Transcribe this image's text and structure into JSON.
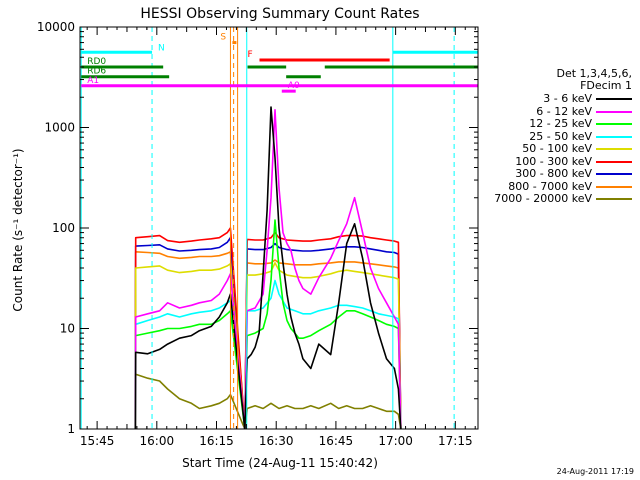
{
  "chart_data": {
    "type": "line",
    "title": "HESSI Observing Summary Count Rates",
    "xlabel": "Start Time (24-Aug-11 15:40:42)",
    "ylabel": "Count Rate (s⁻¹ detector⁻¹)",
    "x_unit": "minutes after 15:40:42",
    "xlim": [
      0,
      100
    ],
    "ylim": [
      1,
      10000
    ],
    "yscale": "log",
    "x_ticks": [
      {
        "label": "15:45",
        "value": 4.3
      },
      {
        "label": "16:00",
        "value": 19.3
      },
      {
        "label": "16:15",
        "value": 34.3
      },
      {
        "label": "16:30",
        "value": 49.3
      },
      {
        "label": "16:45",
        "value": 64.3
      },
      {
        "label": "17:00",
        "value": 79.3
      },
      {
        "label": "17:15",
        "value": 94.3
      }
    ],
    "y_ticks": [
      {
        "label": "1",
        "value": 1
      },
      {
        "label": "10",
        "value": 10
      },
      {
        "label": "100",
        "value": 100
      },
      {
        "label": "1000",
        "value": 1000
      },
      {
        "label": "10000",
        "value": 10000
      }
    ],
    "series": [
      {
        "name": "3 - 6 keV",
        "color": "#000000",
        "x": [
          13.9,
          14,
          17,
          20,
          22,
          25,
          28,
          30,
          33,
          35,
          37,
          37.8,
          41.4,
          42,
          43,
          44,
          45,
          46,
          47,
          48,
          49,
          50,
          51,
          52,
          53,
          54,
          55,
          56,
          58,
          60,
          63,
          65,
          67,
          69,
          71,
          73,
          75,
          77,
          79,
          80,
          80.6
        ],
        "y": [
          1,
          5.8,
          5.6,
          6.2,
          7,
          8,
          8.5,
          9.5,
          10.5,
          13,
          18,
          22,
          1,
          5,
          5.5,
          6.5,
          9,
          35,
          150,
          1600,
          500,
          100,
          45,
          22,
          13,
          9,
          7,
          5,
          4,
          7,
          5.5,
          18,
          70,
          110,
          50,
          18,
          9,
          5,
          4,
          2.5,
          1
        ]
      },
      {
        "name": "6 - 12 keV",
        "color": "#ff00ff",
        "x": [
          13.9,
          14,
          17,
          20,
          22,
          25,
          28,
          30,
          33,
          35,
          37,
          37.8,
          41.4,
          42,
          44,
          46,
          47,
          48,
          49,
          50,
          51,
          52,
          53,
          54,
          55,
          56,
          58,
          60,
          63,
          65,
          67,
          69,
          71,
          73,
          75,
          77,
          79,
          80,
          80.6
        ],
        "y": [
          1,
          13,
          14,
          15,
          18,
          16,
          17,
          18,
          19,
          22,
          30,
          35,
          1,
          15,
          16,
          22,
          60,
          200,
          1500,
          250,
          90,
          70,
          60,
          40,
          30,
          25,
          22,
          32,
          50,
          75,
          110,
          200,
          90,
          40,
          25,
          18,
          13,
          11,
          1
        ]
      },
      {
        "name": "12 - 25 keV",
        "color": "#00ff00",
        "x": [
          13.9,
          14,
          17,
          20,
          22,
          25,
          28,
          30,
          33,
          35,
          37,
          37.8,
          41.4,
          42,
          44,
          46,
          47,
          48,
          49,
          50,
          51,
          52,
          53,
          54,
          55,
          56,
          58,
          60,
          63,
          65,
          67,
          69,
          71,
          73,
          75,
          77,
          79,
          80,
          80.6
        ],
        "y": [
          1,
          8.5,
          9,
          9.5,
          10,
          10,
          10.5,
          11,
          11,
          12,
          14,
          15,
          1,
          8.5,
          9,
          10,
          14,
          30,
          120,
          40,
          18,
          12,
          10,
          9,
          8,
          8,
          8.5,
          9.5,
          11,
          13,
          15,
          15,
          14,
          13,
          12,
          11,
          10.5,
          10,
          1
        ]
      },
      {
        "name": "25 - 50 keV",
        "color": "#00ffff",
        "x": [
          13.9,
          14,
          17,
          20,
          22,
          25,
          28,
          30,
          33,
          35,
          37,
          37.8,
          41.4,
          42,
          44,
          46,
          48,
          49,
          50,
          52,
          54,
          56,
          58,
          60,
          63,
          65,
          67,
          69,
          71,
          73,
          75,
          77,
          79,
          80,
          80.6
        ],
        "y": [
          1,
          11,
          12,
          13,
          14,
          13,
          14,
          14.5,
          15,
          16,
          18,
          19,
          1,
          15,
          15,
          16,
          20,
          30,
          22,
          16,
          15,
          14,
          14,
          15,
          16,
          17,
          17,
          16.5,
          16,
          15,
          14,
          13.5,
          13,
          12.5,
          1
        ]
      },
      {
        "name": "50 - 100 keV",
        "color": "#dddd00",
        "x": [
          13.9,
          14,
          17,
          20,
          22,
          25,
          28,
          30,
          33,
          35,
          37,
          37.8,
          41.4,
          42,
          44,
          46,
          48,
          49,
          50,
          52,
          54,
          56,
          58,
          60,
          63,
          65,
          67,
          69,
          71,
          73,
          75,
          77,
          79,
          80,
          80.6
        ],
        "y": [
          1,
          40,
          41,
          42,
          38,
          36,
          37,
          38,
          38,
          39,
          42,
          44,
          1,
          34,
          34,
          35,
          37,
          45,
          38,
          34,
          33,
          32,
          32,
          33,
          35,
          37,
          38,
          37,
          36,
          35,
          34,
          33,
          32,
          31,
          1
        ]
      },
      {
        "name": "100 - 300 keV",
        "color": "#ff0000",
        "x": [
          13.9,
          14,
          17,
          20,
          22,
          25,
          28,
          30,
          33,
          35,
          37,
          37.8,
          41.4,
          42,
          44,
          46,
          48,
          49,
          50,
          52,
          54,
          56,
          58,
          60,
          63,
          65,
          67,
          69,
          71,
          73,
          75,
          77,
          79,
          80,
          80.6
        ],
        "y": [
          1,
          80,
          82,
          84,
          75,
          72,
          74,
          76,
          78,
          80,
          90,
          100,
          1,
          77,
          76,
          76,
          80,
          90,
          80,
          76,
          75,
          74,
          74,
          76,
          78,
          82,
          84,
          84,
          83,
          80,
          78,
          76,
          74,
          72,
          1
        ]
      },
      {
        "name": "300 - 800 keV",
        "color": "#0000cc",
        "x": [
          13.9,
          14,
          17,
          20,
          22,
          25,
          28,
          30,
          33,
          35,
          37,
          37.8,
          41.4,
          42,
          44,
          46,
          48,
          49,
          50,
          52,
          54,
          56,
          58,
          60,
          63,
          65,
          67,
          69,
          71,
          73,
          75,
          77,
          79,
          80,
          80.6
        ],
        "y": [
          1,
          66,
          67,
          68,
          62,
          59,
          60,
          61,
          62,
          64,
          72,
          80,
          1,
          62,
          61,
          61,
          64,
          70,
          64,
          61,
          60,
          59,
          59,
          60,
          62,
          64,
          65,
          65,
          64,
          62,
          60,
          58,
          57,
          55,
          1
        ]
      },
      {
        "name": "800 - 7000 keV",
        "color": "#ff8000",
        "x": [
          13.9,
          14,
          17,
          20,
          22,
          25,
          28,
          30,
          33,
          35,
          37,
          37.8,
          41.4,
          42,
          44,
          46,
          48,
          49,
          50,
          52,
          54,
          56,
          58,
          60,
          63,
          65,
          67,
          69,
          71,
          73,
          75,
          77,
          79,
          80,
          80.6
        ],
        "y": [
          1,
          58,
          57,
          56,
          52,
          50,
          51,
          52,
          52,
          53,
          56,
          58,
          1,
          45,
          44,
          44,
          45,
          48,
          45,
          44,
          43,
          43,
          43,
          44,
          45,
          46,
          46,
          46,
          45,
          44,
          43,
          42,
          41,
          40,
          1
        ]
      },
      {
        "name": "7000 - 20000 keV",
        "color": "#808000",
        "x": [
          13.9,
          14,
          17,
          20,
          22,
          25,
          28,
          30,
          33,
          35,
          37,
          37.8,
          41.4,
          42,
          44,
          46,
          48,
          50,
          52,
          54,
          56,
          58,
          60,
          63,
          65,
          67,
          69,
          71,
          73,
          75,
          77,
          79,
          80,
          80.6
        ],
        "y": [
          1,
          3.5,
          3.2,
          3,
          2.5,
          2,
          1.8,
          1.6,
          1.7,
          1.8,
          2,
          2.2,
          1,
          1.6,
          1.7,
          1.6,
          1.8,
          1.6,
          1.7,
          1.6,
          1.6,
          1.7,
          1.6,
          1.8,
          1.6,
          1.7,
          1.6,
          1.6,
          1.7,
          1.6,
          1.5,
          1.5,
          1.4,
          1
        ]
      }
    ],
    "vertical_lines": [
      {
        "name": "N",
        "x": 18.1,
        "color": "#00ffff",
        "style": "dashed"
      },
      {
        "name": "N",
        "x": 94.0,
        "color": "#00ffff",
        "style": "dashed"
      },
      {
        "name": "night-start",
        "x": 0.3,
        "color": "#00ffff",
        "style": "solid"
      },
      {
        "name": "night-end",
        "x": 41.9,
        "color": "#00ffff",
        "style": "solid"
      },
      {
        "name": "night-start-2",
        "x": 78.6,
        "color": "#00ffff",
        "style": "solid"
      },
      {
        "name": "S",
        "x": 38.6,
        "color": "#ff8000",
        "style": "dashed"
      },
      {
        "name": "saa-start",
        "x": 37.8,
        "color": "#ff8000",
        "style": "solid"
      },
      {
        "name": "saa-end",
        "x": 39.6,
        "color": "#ff8000",
        "style": "solid"
      }
    ],
    "flag_bars": [
      {
        "name": "N",
        "color": "#00ffff",
        "y": 5600,
        "segments": [
          [
            0.3,
            18.1
          ],
          [
            78.6,
            100
          ]
        ]
      },
      {
        "name": "S",
        "color": "#ff8000",
        "y": 7000,
        "segments": [
          [
            38.3,
            39.3
          ]
        ]
      },
      {
        "name": "F",
        "color": "#ff0000",
        "y": 4700,
        "segments": [
          [
            45.1,
            77.8
          ]
        ]
      },
      {
        "name": "RD0",
        "color": "#008000",
        "y": 4000,
        "segments": [
          [
            0.3,
            20.9
          ],
          [
            42.1,
            51.8
          ],
          [
            61.5,
            100
          ]
        ]
      },
      {
        "name": "RD6",
        "color": "#008000",
        "y": 3200,
        "segments": [
          [
            0.3,
            22.4
          ],
          [
            51.8,
            60.5
          ]
        ]
      },
      {
        "name": "A1",
        "color": "#ff00ff",
        "y": 2600,
        "segments": [
          [
            0.3,
            100
          ]
        ]
      },
      {
        "name": "A0",
        "color": "#ff00ff",
        "y": 2300,
        "segments": [
          [
            50.7,
            54.2
          ]
        ]
      }
    ]
  },
  "legend": {
    "header_line1": "Det 1,3,4,5,6,",
    "header_line2": "FDecim 1"
  },
  "footer": {
    "timestamp": "24-Aug-2011 17:19"
  }
}
